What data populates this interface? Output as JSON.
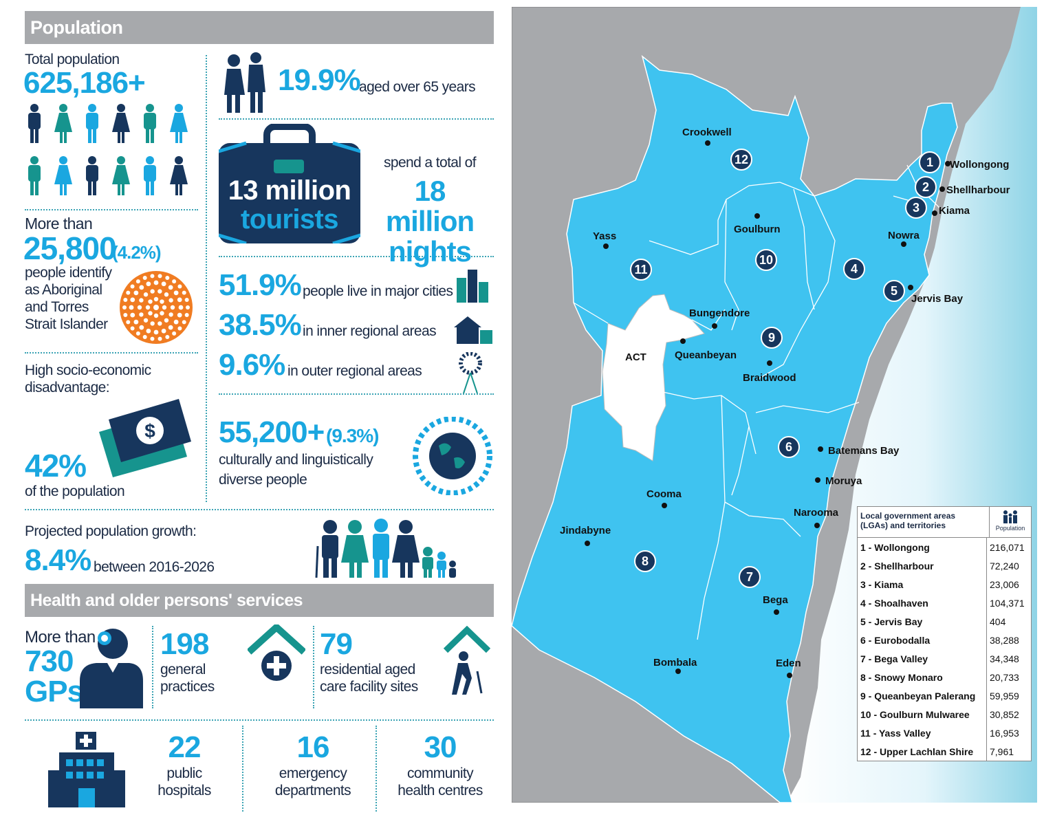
{
  "population": {
    "header": "Population",
    "total_label": "Total population",
    "total_value": "625,186+",
    "aged_value": "19.9%",
    "aged_label": "aged over 65 years",
    "tourists_line1": "13 million",
    "tourists_line2": "tourists",
    "spend_label": "spend a total of",
    "nights_line1": "18 million",
    "nights_line2": "nights",
    "aboriginal_prefix": "More than",
    "aboriginal_value": "25,800",
    "aboriginal_pct": "(4.2%)",
    "aboriginal_label": [
      "people identify",
      "as Aboriginal",
      "and Torres",
      "Strait Islander"
    ],
    "major_value": "51.9%",
    "major_label": "people live in major cities",
    "inner_value": "38.5%",
    "inner_label": "in inner regional areas",
    "outer_value": "9.6%",
    "outer_label": "in outer regional areas",
    "disadv_label1": "High socio-economic",
    "disadv_label2": "disadvantage:",
    "disadv_value": "42%",
    "disadv_of": "of the population",
    "cald_value": "55,200+",
    "cald_pct": "(9.3%)",
    "cald_label1": "culturally and linguistically",
    "cald_label2": "diverse people",
    "growth_label": "Projected population growth:",
    "growth_value": "8.4%",
    "growth_range": "between 2016-2026"
  },
  "health": {
    "header": "Health and older persons' services",
    "gps_prefix": "More than",
    "gps_value": "730",
    "gps_label": "GPs",
    "practices_value": "198",
    "practices_label1": "general",
    "practices_label2": "practices",
    "aged_value": "79",
    "aged_label1": "residential aged",
    "aged_label2": "care facility sites",
    "hospitals_value": "22",
    "hospitals_label1": "public",
    "hospitals_label2": "hospitals",
    "ed_value": "16",
    "ed_label1": "emergency",
    "ed_label2": "departments",
    "chc_value": "30",
    "chc_label1": "community",
    "chc_label2": "health centres"
  },
  "map": {
    "act_label": "ACT",
    "towns": [
      "Crookwell",
      "Wollongong",
      "Shellharbour",
      "Kiama",
      "Nowra",
      "Goulburn",
      "Yass",
      "Jervis Bay",
      "Bungendore",
      "Queanbeyan",
      "Braidwood",
      "Batemans Bay",
      "Moruya",
      "Cooma",
      "Narooma",
      "Jindabyne",
      "Bega",
      "Bombala",
      "Eden"
    ],
    "region_numbers": [
      "1",
      "2",
      "3",
      "4",
      "5",
      "6",
      "7",
      "8",
      "9",
      "10",
      "11",
      "12"
    ]
  },
  "legend": {
    "title_line1": "Local government areas",
    "title_line2": "(LGAs) and territories",
    "pop_header": "Population",
    "rows": [
      {
        "name": "1 - Wollongong",
        "pop": "216,071"
      },
      {
        "name": "2 - Shellharbour",
        "pop": "72,240"
      },
      {
        "name": "3 - Kiama",
        "pop": "23,006"
      },
      {
        "name": "4 - Shoalhaven",
        "pop": "104,371"
      },
      {
        "name": "5 - Jervis Bay",
        "pop": "404"
      },
      {
        "name": "6 - Eurobodalla",
        "pop": "38,288"
      },
      {
        "name": "7 - Bega Valley",
        "pop": "34,348"
      },
      {
        "name": "8 - Snowy Monaro",
        "pop": "20,733"
      },
      {
        "name": "9 - Queanbeyan Palerang",
        "pop": "59,959"
      },
      {
        "name": "10 - Goulburn Mulwaree",
        "pop": "30,852"
      },
      {
        "name": "11 - Yass Valley",
        "pop": "16,953"
      },
      {
        "name": "12 - Upper Lachlan Shire",
        "pop": "7,961"
      }
    ]
  },
  "colors": {
    "accent": "#1aa7e0",
    "navy": "#17365d",
    "teal": "#16948e",
    "orange": "#f07c22",
    "map_land": "#3fc3f0",
    "map_bg": "#a7a9ac"
  }
}
